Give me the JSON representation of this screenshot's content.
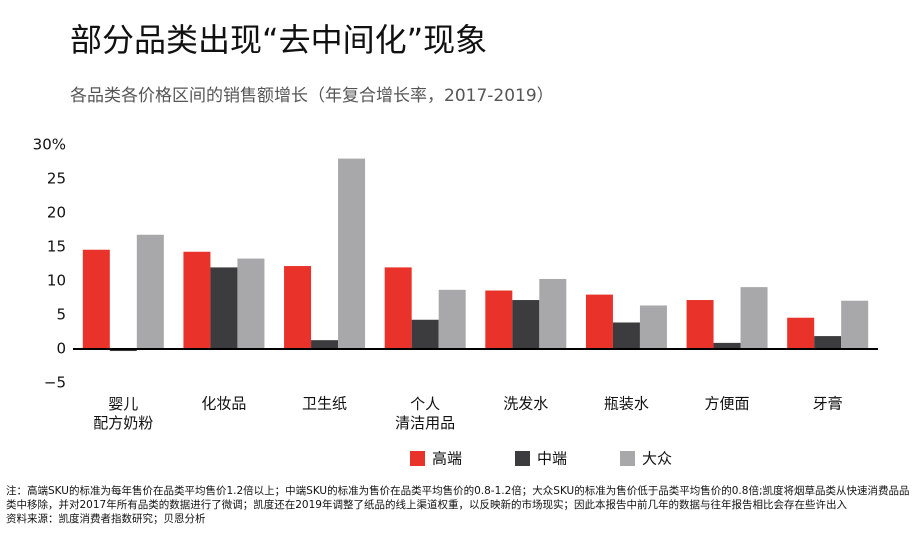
{
  "chart_data": {
    "type": "bar",
    "title": "部分品类出现“去中间化”现象",
    "subtitle": "各品类各价格区间的销售额增长（年复合增长率，2017-2019）",
    "categories": [
      "婴儿\n配方奶粉",
      "化妆品",
      "卫生纸",
      "个人\n清洁用品",
      "洗发水",
      "瓶装水",
      "方便面",
      "牙膏"
    ],
    "series": [
      {
        "name": "高端",
        "color": "#e8322a",
        "values": [
          14.6,
          14.3,
          12.2,
          12.0,
          8.6,
          8.0,
          7.2,
          4.6
        ]
      },
      {
        "name": "中端",
        "color": "#3c3c3e",
        "values": [
          -0.3,
          12.0,
          1.3,
          4.3,
          7.2,
          3.9,
          0.9,
          1.9
        ]
      },
      {
        "name": "大众",
        "color": "#a8a8aa",
        "values": [
          16.8,
          13.3,
          28.0,
          8.7,
          10.3,
          6.4,
          9.1,
          7.1
        ]
      }
    ],
    "ylim": [
      -5,
      30
    ],
    "yticks": [
      {
        "value": -5,
        "label": "−5"
      },
      0,
      5,
      10,
      15,
      20,
      25,
      {
        "value": 30,
        "label": "30%"
      }
    ],
    "grid": false,
    "legend": "bottom",
    "note": "注：高端SKU的标准为每年售价在品类平均售价1.2倍以上；中端SKU的标准为售价在品类平均售价的0.8-1.2倍；大众SKU的标准为售价低于品类平均售价的0.8倍;凯度将烟草品类从快速消费品品类中移除，并对2017年所有品类的数据进行了微调；凯度还在2019年调整了纸品的线上渠道权重，以反映新的市场现实；因此本报告中前几年的数据与往年报告相比会存在些许出入",
    "source": "资料来源：凯度消费者指数研究；贝恩分析"
  }
}
